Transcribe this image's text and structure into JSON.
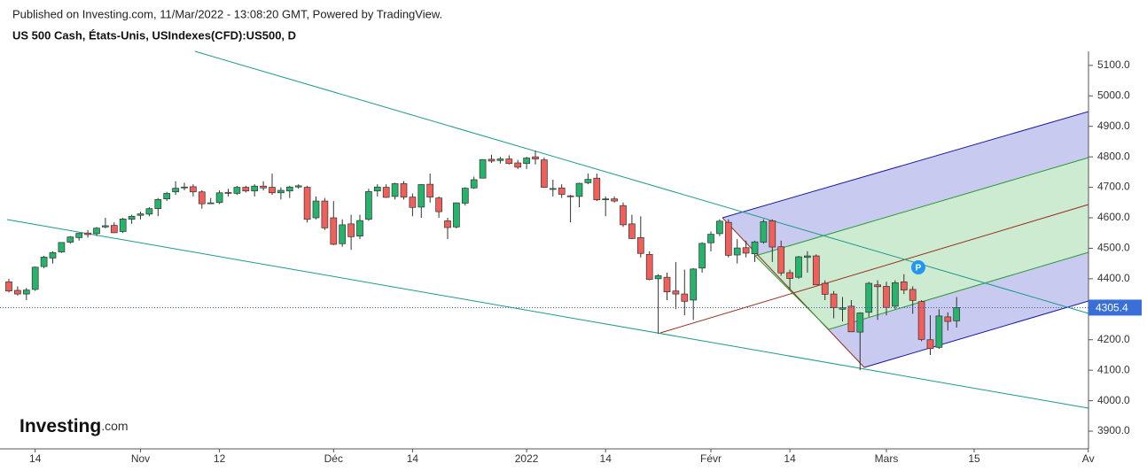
{
  "chart_data": {
    "type": "candlestick",
    "header": "Published on Investing.com, 11/Mar/2022 - 13:08:20 GMT, Powered by TradingView.",
    "title": "US 500 Cash, États-Unis, USIndexes(CFD):US500, D",
    "logo": "Investing",
    "logo_suffix": ".com",
    "marker": "P",
    "up_color": "#26b36b",
    "down_color": "#f05f5a",
    "categories": [
      null,
      null,
      null,
      "14",
      null,
      null,
      null,
      null,
      null,
      null,
      null,
      null,
      null,
      null,
      null,
      "Nov",
      null,
      null,
      null,
      null,
      null,
      null,
      null,
      null,
      "12",
      null,
      null,
      null,
      null,
      null,
      null,
      null,
      null,
      null,
      null,
      null,
      null,
      "Déc",
      null,
      null,
      null,
      null,
      null,
      null,
      null,
      null,
      "14",
      null,
      null,
      null,
      null,
      null,
      null,
      null,
      null,
      null,
      null,
      null,
      null,
      "2022",
      null,
      null,
      null,
      null,
      null,
      null,
      null,
      null,
      "14",
      null,
      null,
      null,
      null,
      null,
      null,
      null,
      null,
      null,
      null,
      null,
      "Févr",
      null,
      null,
      null,
      null,
      null,
      null,
      null,
      null,
      "14",
      null,
      null,
      null,
      null,
      null,
      null,
      null,
      null,
      null,
      null,
      "Mars",
      null,
      null,
      null,
      null,
      null,
      null,
      null,
      null,
      null,
      "15",
      null,
      null,
      null,
      null,
      null,
      null,
      null,
      null,
      null,
      null,
      null,
      null,
      "Av"
    ],
    "open": [
      4390,
      4362,
      4350,
      4365,
      4440,
      4468,
      4488,
      4520,
      4535,
      4550,
      4548,
      4570,
      4575,
      4555,
      4595,
      4608,
      4612,
      4630,
      4662,
      4685,
      4698,
      4702,
      4685,
      4648,
      4650,
      4683,
      4680,
      4700,
      4688,
      4704,
      4700,
      4682,
      4688,
      4701,
      4700,
      4600,
      4655,
      4600,
      4515,
      4580,
      4540,
      4595,
      4688,
      4700,
      4670,
      4712,
      4668,
      4635,
      4710,
      4665,
      4590,
      4570,
      4648,
      4698,
      4730,
      4792,
      4788,
      4793,
      4780,
      4778,
      4800,
      4790,
      4695,
      4698,
      4672,
      4670,
      4715,
      4730,
      4660,
      4662,
      4640,
      4580,
      4535,
      4480,
      4400,
      4405,
      4360,
      4350,
      4330,
      4435,
      4518,
      4548,
      4585,
      4478,
      4502,
      4482,
      4520,
      4590,
      4505,
      4420,
      4405,
      4470,
      4475,
      4385,
      4350,
      4300,
      4310,
      4225,
      4290,
      4380,
      4375,
      4310,
      4390,
      4365,
      4325,
      4200,
      4175,
      4275,
      4262,
      null,
      null,
      null,
      null,
      null,
      null,
      null,
      null,
      null,
      null,
      null,
      null,
      null,
      null,
      null
    ],
    "high": [
      4400,
      4375,
      4370,
      4440,
      4475,
      4490,
      4520,
      4540,
      4550,
      4560,
      4570,
      4600,
      4585,
      4600,
      4610,
      4620,
      4635,
      4665,
      4685,
      4720,
      4715,
      4710,
      4690,
      4665,
      4690,
      4695,
      4705,
      4705,
      4710,
      4720,
      4745,
      4700,
      4705,
      4710,
      4705,
      4670,
      4665,
      4655,
      4595,
      4610,
      4610,
      4695,
      4710,
      4710,
      4715,
      4720,
      4680,
      4710,
      4745,
      4670,
      4600,
      4650,
      4700,
      4735,
      4792,
      4807,
      4800,
      4805,
      4790,
      4800,
      4820,
      4798,
      4725,
      4710,
      4675,
      4715,
      4745,
      4745,
      4670,
      4670,
      4650,
      4610,
      4605,
      4490,
      4415,
      4420,
      4455,
      4430,
      4435,
      4520,
      4555,
      4595,
      4595,
      4530,
      4525,
      4525,
      4595,
      4595,
      4525,
      4430,
      4475,
      4490,
      4480,
      4395,
      4360,
      4340,
      4330,
      4290,
      4390,
      4395,
      4390,
      4395,
      4415,
      4375,
      4330,
      4280,
      4300,
      4290,
      4340,
      null,
      null,
      null,
      null,
      null,
      null,
      null,
      null,
      null,
      null,
      null,
      null,
      null,
      null,
      null
    ],
    "low": [
      4355,
      4345,
      4330,
      4360,
      4435,
      4450,
      4485,
      4515,
      4525,
      4535,
      4540,
      4565,
      4550,
      4550,
      4580,
      4595,
      4605,
      4605,
      4655,
      4675,
      4690,
      4670,
      4630,
      4645,
      4645,
      4670,
      4675,
      4683,
      4670,
      4690,
      4675,
      4660,
      4665,
      4695,
      4585,
      4595,
      4560,
      4510,
      4505,
      4495,
      4530,
      4590,
      4670,
      4665,
      4660,
      4660,
      4605,
      4600,
      4650,
      4600,
      4530,
      4565,
      4640,
      4695,
      4730,
      4780,
      4778,
      4775,
      4760,
      4760,
      4775,
      4698,
      4670,
      4665,
      4585,
      4635,
      4710,
      4655,
      4605,
      4650,
      4570,
      4530,
      4470,
      4395,
      4220,
      4330,
      4300,
      4280,
      4265,
      4420,
      4490,
      4540,
      4470,
      4450,
      4470,
      4455,
      4515,
      4455,
      4410,
      4365,
      4400,
      4420,
      4380,
      4330,
      4270,
      4260,
      4225,
      4100,
      4275,
      4265,
      4280,
      4300,
      4350,
      4285,
      4195,
      4150,
      4170,
      4230,
      4240,
      null,
      null,
      null,
      null,
      null,
      null,
      null,
      null,
      null,
      null,
      null,
      null,
      null,
      null,
      null
    ],
    "close": [
      4360,
      4350,
      4363,
      4438,
      4471,
      4486,
      4519,
      4537,
      4549,
      4545,
      4566,
      4574,
      4551,
      4596,
      4605,
      4613,
      4630,
      4660,
      4680,
      4697,
      4701,
      4685,
      4646,
      4649,
      4682,
      4682,
      4700,
      4688,
      4704,
      4698,
      4682,
      4690,
      4701,
      4705,
      4595,
      4655,
      4567,
      4513,
      4577,
      4538,
      4591,
      4686,
      4701,
      4667,
      4712,
      4668,
      4634,
      4709,
      4668,
      4620,
      4568,
      4649,
      4697,
      4725,
      4791,
      4786,
      4793,
      4778,
      4766,
      4796,
      4793,
      4700,
      4696,
      4677,
      4670,
      4713,
      4726,
      4659,
      4662,
      4655,
      4577,
      4532,
      4483,
      4398,
      4410,
      4357,
      4350,
      4326,
      4432,
      4516,
      4546,
      4589,
      4477,
      4501,
      4484,
      4521,
      4587,
      4504,
      4419,
      4401,
      4472,
      4475,
      4380,
      4349,
      4305,
      4305,
      4226,
      4288,
      4385,
      4374,
      4306,
      4387,
      4363,
      4329,
      4201,
      4171,
      4278,
      4260,
      4305.4,
      null,
      null,
      null,
      null,
      null,
      null,
      null,
      null,
      null,
      null,
      null,
      null,
      null,
      null,
      null
    ],
    "ylim": [
      3842,
      5146
    ],
    "yticks": [
      {
        "value": 3900,
        "label": "3900.0"
      },
      {
        "value": 4000,
        "label": "4000.0"
      },
      {
        "value": 4100,
        "label": "4100.0"
      },
      {
        "value": 4200,
        "label": "4200.0"
      },
      {
        "value": 4300,
        "label": "4300.0"
      },
      {
        "value": 4400,
        "label": "4400.0"
      },
      {
        "value": 4500,
        "label": "4500.0"
      },
      {
        "value": 4600,
        "label": "4600.0"
      },
      {
        "value": 4700,
        "label": "4700.0"
      },
      {
        "value": 4800,
        "label": "4800.0"
      },
      {
        "value": 4900,
        "label": "4900.0"
      },
      {
        "value": 5000,
        "label": "5000.0"
      },
      {
        "value": 5100,
        "label": "5100.0"
      }
    ],
    "grid": false
  }
}
